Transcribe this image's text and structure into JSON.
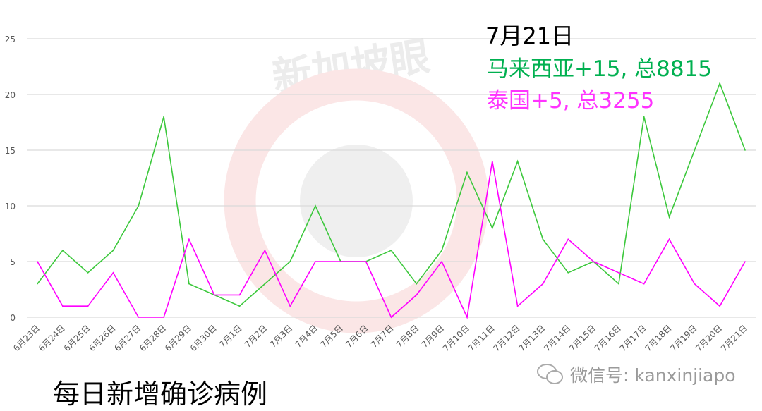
{
  "chart_data": {
    "type": "line",
    "title": "每日新增确诊病例",
    "xlabel": "",
    "ylabel": "",
    "ylim": [
      0,
      25
    ],
    "yticks": [
      0,
      5,
      10,
      15,
      20,
      25
    ],
    "grid": true,
    "categories": [
      "6月23日",
      "6月24日",
      "6月25日",
      "6月26日",
      "6月27日",
      "6月28日",
      "6月29日",
      "6月30日",
      "7月1日",
      "7月2日",
      "7月3日",
      "7月4日",
      "7月5日",
      "7月6日",
      "7月7日",
      "7月8日",
      "7月9日",
      "7月10日",
      "7月11日",
      "7月12日",
      "7月13日",
      "7月14日",
      "7月15日",
      "7月16日",
      "7月17日",
      "7月18日",
      "7月19日",
      "7月20日",
      "7月21日"
    ],
    "series": [
      {
        "color": "#3cc83c",
        "values": [
          3,
          6,
          4,
          6,
          10,
          18,
          3,
          2,
          1,
          3,
          5,
          10,
          5,
          5,
          6,
          3,
          6,
          13,
          8,
          14,
          7,
          4,
          5,
          3,
          18,
          9,
          15,
          21,
          15
        ]
      },
      {
        "color": "#ff00ff",
        "values": [
          5,
          1,
          1,
          4,
          0,
          0,
          7,
          2,
          2,
          6,
          1,
          5,
          5,
          5,
          0,
          2,
          5,
          0,
          14,
          1,
          3,
          7,
          5,
          4,
          3,
          7,
          3,
          1,
          5
        ]
      }
    ],
    "annotations": {
      "date": "7月21日",
      "malaysia": "马来西亚+15, 总8815",
      "thailand": "泰国+5, 总3255",
      "malaysia_color": "#00b050",
      "thailand_color": "#ff33ff"
    }
  },
  "watermark": "新加坡眼",
  "wechat": {
    "icon": "wechat-icon",
    "label": "微信号: kanxinjiapo"
  }
}
